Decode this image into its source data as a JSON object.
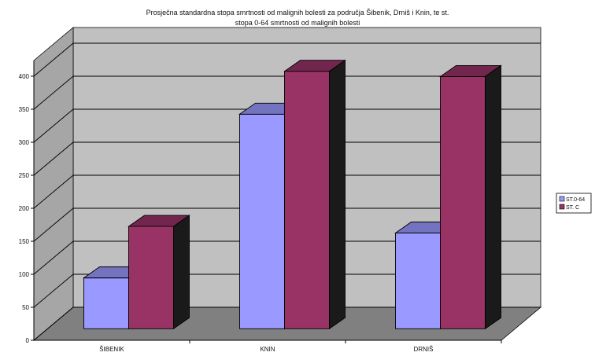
{
  "chart_data": {
    "type": "bar",
    "title_line1": "Prosječna standardna stopa smrtnosti od malignih bolesti za područja Šibenik, Drniš i Knin, te st.",
    "title_line2": "stopa 0-64 smrtnosti od malignih bolesti",
    "categories": [
      "ŠIBENIK",
      "KNIN",
      "DRNIŠ"
    ],
    "series": [
      {
        "name": "ST.0-64",
        "values": [
          77,
          325,
          145
        ],
        "color": "#9999ff"
      },
      {
        "name": "ST. C",
        "values": [
          155,
          390,
          382
        ],
        "color": "#993366"
      }
    ],
    "yticks": [
      0,
      50,
      100,
      150,
      200,
      250,
      300,
      350,
      400
    ],
    "ylim": [
      0,
      400
    ],
    "grid": true,
    "legend_position": "right",
    "three_d": true,
    "wall_color": "#c0c0c0",
    "floor_color": "#808080"
  }
}
